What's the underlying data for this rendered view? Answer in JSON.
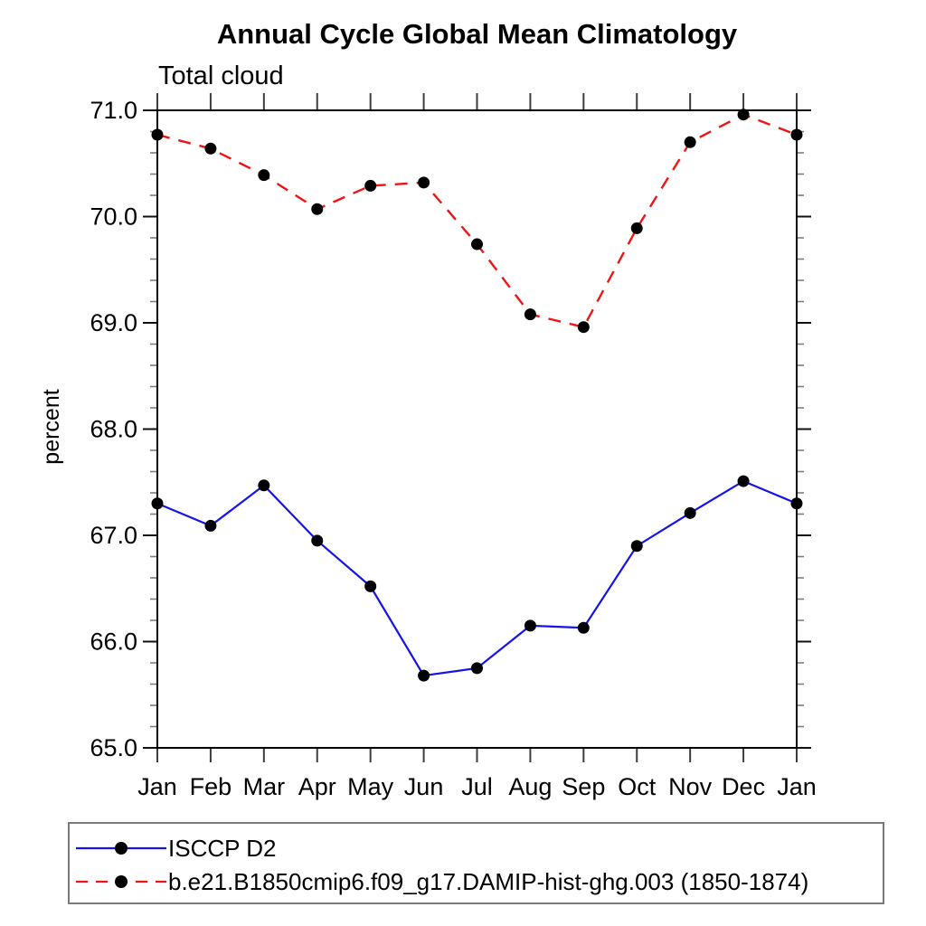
{
  "title": "Annual Cycle Global Mean Climatology",
  "subtitle": "Total cloud",
  "ylabel": "percent",
  "colors": {
    "series1": "#1414e8",
    "series2": "#ee1515",
    "marker": "#000000",
    "frame": "#000000",
    "legend_border": "#7a7a7a",
    "background": "#ffffff"
  },
  "legend": {
    "position": "bottom-left"
  },
  "chart_data": {
    "type": "line",
    "title": "Annual Cycle Global Mean Climatology",
    "subtitle": "Total cloud",
    "ylabel": "percent",
    "xlabel": "",
    "categories": [
      "Jan",
      "Feb",
      "Mar",
      "Apr",
      "May",
      "Jun",
      "Jul",
      "Aug",
      "Sep",
      "Oct",
      "Nov",
      "Dec",
      "Jan"
    ],
    "series": [
      {
        "name": "ISCCP D2",
        "color": "#1414e8",
        "line_style": "solid",
        "marker": "filled-circle",
        "marker_color": "#000000",
        "values": [
          67.3,
          67.09,
          67.47,
          66.95,
          66.52,
          65.68,
          65.75,
          66.15,
          66.13,
          66.9,
          67.21,
          67.51,
          67.3
        ]
      },
      {
        "name": "b.e21.B1850cmip6.f09_g17.DAMIP-hist-ghg.003 (1850-1874)",
        "color": "#ee1515",
        "line_style": "dashed",
        "marker": "filled-circle",
        "marker_color": "#000000",
        "values": [
          70.77,
          70.64,
          70.39,
          70.07,
          70.29,
          70.32,
          69.74,
          69.08,
          68.96,
          69.89,
          70.7,
          70.96,
          70.77
        ]
      }
    ],
    "ylim": [
      65.0,
      71.0
    ],
    "y_major_step": 1.0,
    "y_minor_step": 0.2,
    "y_tick_labels": [
      "65.0",
      "66.0",
      "67.0",
      "68.0",
      "69.0",
      "70.0",
      "71.0"
    ],
    "grid": false,
    "legend_position": "bottom-left"
  }
}
